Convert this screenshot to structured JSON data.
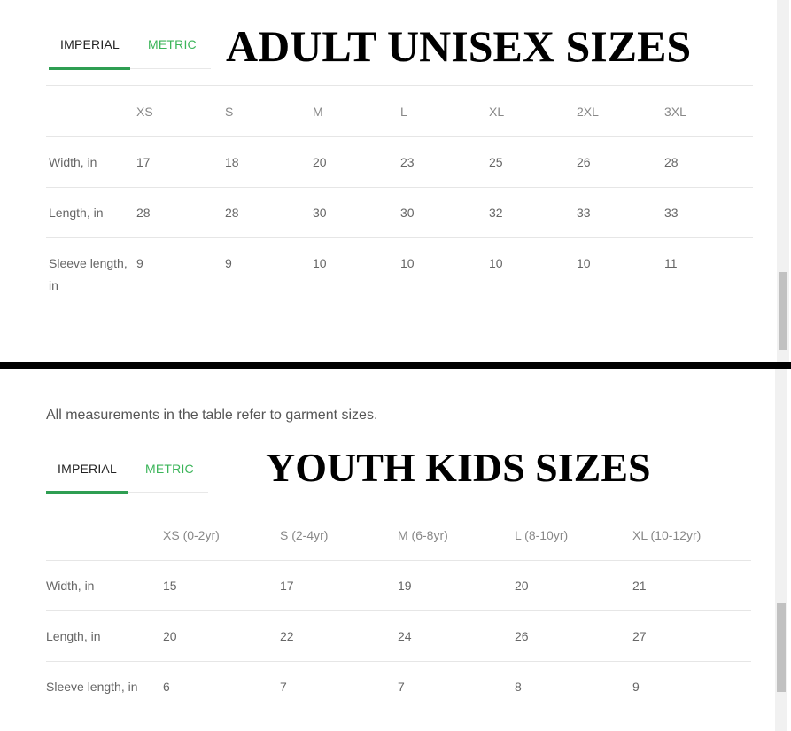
{
  "adult": {
    "title": "ADULT UNISEX SIZES",
    "tabs": [
      {
        "label": "IMPERIAL",
        "active": true
      },
      {
        "label": "METRIC",
        "active": false
      }
    ],
    "headers": [
      "XS",
      "S",
      "M",
      "L",
      "XL",
      "2XL",
      "3XL"
    ],
    "rows": [
      {
        "label": "Width, in",
        "values": [
          "17",
          "18",
          "20",
          "23",
          "25",
          "26",
          "28"
        ]
      },
      {
        "label": "Length, in",
        "values": [
          "28",
          "28",
          "30",
          "30",
          "32",
          "33",
          "33"
        ]
      },
      {
        "label": "Sleeve length, in",
        "values": [
          "9",
          "9",
          "10",
          "10",
          "10",
          "10",
          "11"
        ]
      }
    ]
  },
  "youth": {
    "note": "All measurements in the table refer to garment sizes.",
    "title": "YOUTH KIDS SIZES",
    "tabs": [
      {
        "label": "IMPERIAL",
        "active": true
      },
      {
        "label": "METRIC",
        "active": false
      }
    ],
    "headers": [
      "XS (0-2yr)",
      "S (2-4yr)",
      "M (6-8yr)",
      "L (8-10yr)",
      "XL (10-12yr)"
    ],
    "rows": [
      {
        "label": "Width, in",
        "values": [
          "15",
          "17",
          "19",
          "20",
          "21"
        ]
      },
      {
        "label": "Length, in",
        "values": [
          "20",
          "22",
          "24",
          "26",
          "27"
        ]
      },
      {
        "label": "Sleeve length, in",
        "values": [
          "6",
          "7",
          "7",
          "8",
          "9"
        ]
      }
    ]
  },
  "colors": {
    "accent": "#3cb55a",
    "underline": "#2e9e52"
  }
}
